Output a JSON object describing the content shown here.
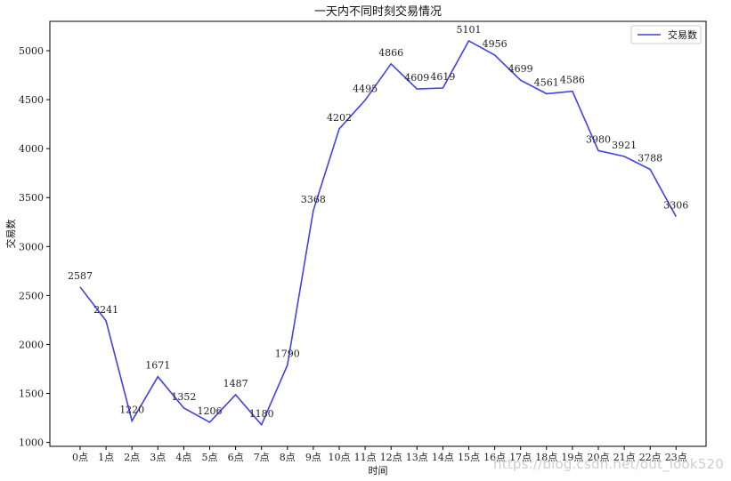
{
  "chart_data": {
    "type": "line",
    "title": "一天内不同时刻交易情况",
    "xlabel": "时间",
    "ylabel": "交易数",
    "categories": [
      "0点",
      "1点",
      "2点",
      "3点",
      "4点",
      "5点",
      "6点",
      "7点",
      "8点",
      "9点",
      "10点",
      "11点",
      "12点",
      "13点",
      "14点",
      "15点",
      "16点",
      "17点",
      "18点",
      "19点",
      "20点",
      "21点",
      "22点",
      "23点"
    ],
    "series": [
      {
        "name": "交易数",
        "color": "#4040f0",
        "values": [
          2587,
          2241,
          1220,
          1671,
          1352,
          1206,
          1487,
          1180,
          1790,
          3368,
          4202,
          4495,
          4866,
          4609,
          4619,
          5101,
          4956,
          4699,
          4561,
          4586,
          3980,
          3921,
          3788,
          3306
        ]
      }
    ],
    "yticks": [
      1000,
      1500,
      2000,
      2500,
      3000,
      3500,
      4000,
      4500,
      5000
    ],
    "ylim": [
      960,
      5300
    ],
    "grid": false,
    "legend_position": "top-right"
  },
  "watermark": "https://blog.csdn.net/out_look520"
}
